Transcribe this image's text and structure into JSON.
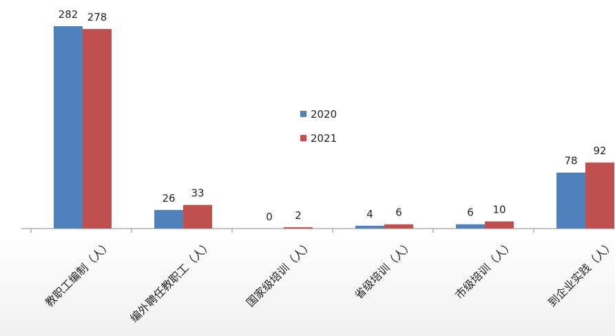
{
  "chart_data": {
    "type": "bar",
    "title": "",
    "xlabel": "",
    "ylabel": "",
    "categories": [
      "教职工编制（人）",
      "编外聘任教职工（人）",
      "国家级培训（人）",
      "省级培训（人）",
      "市级培训（人）",
      "到企业实践（人）"
    ],
    "series": [
      {
        "name": "2020",
        "values": [
          282,
          26,
          0,
          4,
          6,
          78
        ],
        "color": "#4f81bd"
      },
      {
        "name": "2021",
        "values": [
          278,
          33,
          2,
          6,
          10,
          92
        ],
        "color": "#c0504d"
      }
    ],
    "value_labels": [
      [
        "282",
        "26",
        "0",
        "4",
        "6",
        "78"
      ],
      [
        "278",
        "33",
        "2",
        "6",
        "10",
        "92"
      ]
    ],
    "ylim": [
      0,
      282
    ],
    "grid": false,
    "legend_position": "center"
  }
}
